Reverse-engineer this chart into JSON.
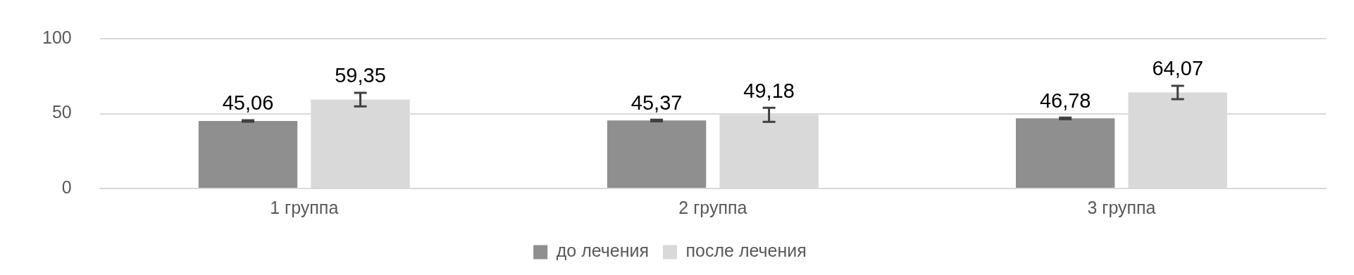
{
  "chart_data": {
    "type": "bar",
    "categories": [
      "1 группа",
      "2 группа",
      "3 группа"
    ],
    "series": [
      {
        "name": "до лечения",
        "color": "#8f8f8f",
        "values": [
          45.06,
          45.37,
          46.78
        ],
        "errors": [
          0.5,
          0.5,
          0.5
        ],
        "value_labels": [
          "45,06",
          "45,37",
          "46,78"
        ]
      },
      {
        "name": "после лечения",
        "color": "#d9d9d9",
        "values": [
          59.35,
          49.18,
          64.07
        ],
        "errors": [
          4.5,
          4.7,
          4.5
        ],
        "value_labels": [
          "59,35",
          "49,18",
          "64,07"
        ]
      }
    ],
    "ylim": [
      0,
      100
    ],
    "yticks": [
      0,
      50,
      100
    ],
    "grid": "y",
    "legend": "bottom"
  }
}
